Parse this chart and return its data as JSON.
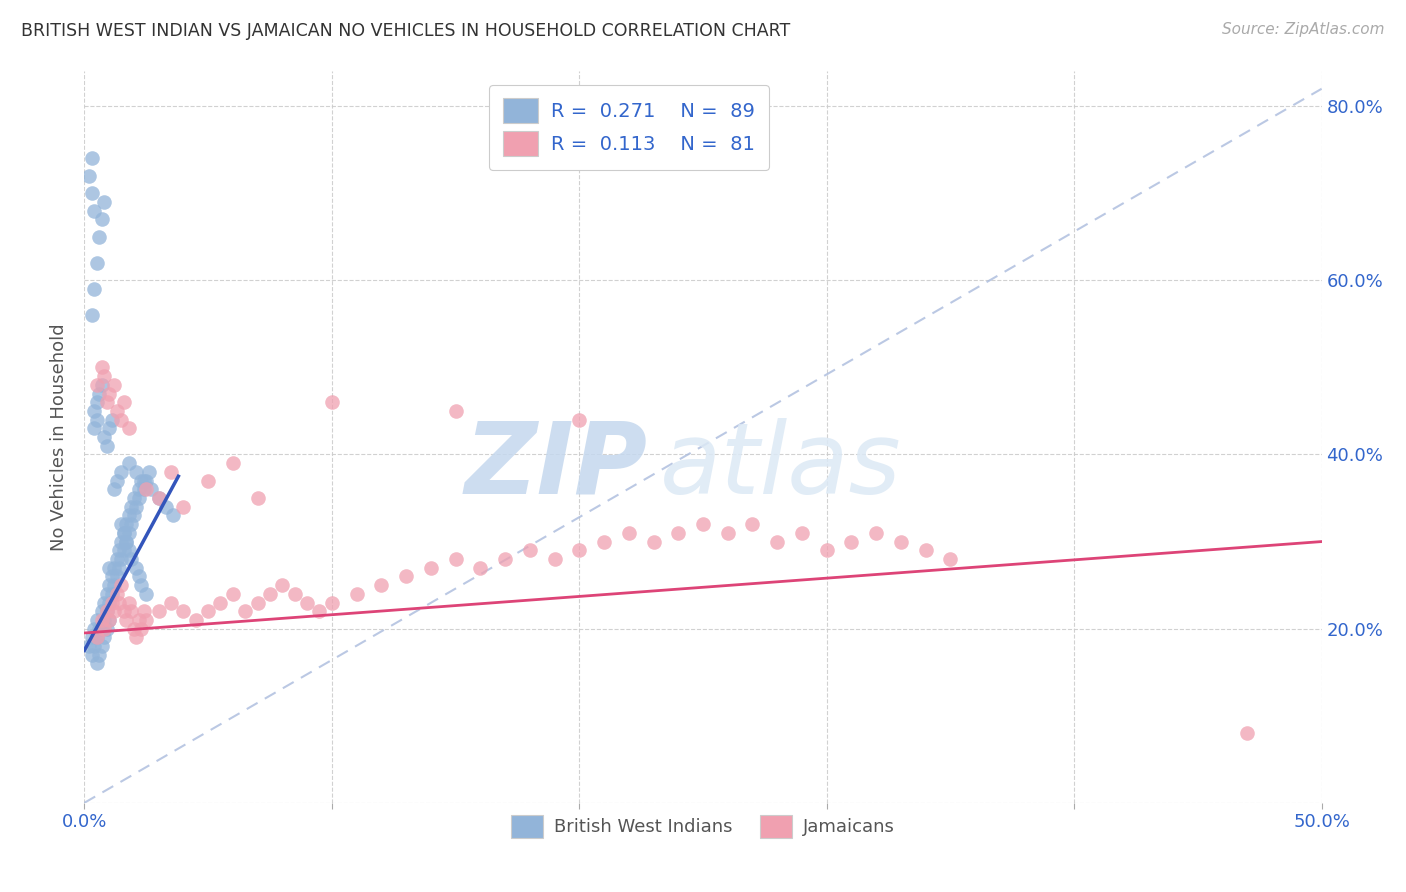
{
  "title": "BRITISH WEST INDIAN VS JAMAICAN NO VEHICLES IN HOUSEHOLD CORRELATION CHART",
  "source": "Source: ZipAtlas.com",
  "ylabel": "No Vehicles in Household",
  "xlim": [
    0.0,
    0.5
  ],
  "ylim": [
    0.0,
    0.84
  ],
  "x_ticks": [
    0.0,
    0.1,
    0.2,
    0.3,
    0.4,
    0.5
  ],
  "x_tick_labels": [
    "0.0%",
    "",
    "",
    "",
    "",
    "50.0%"
  ],
  "y_ticks": [
    0.0,
    0.2,
    0.4,
    0.6,
    0.8
  ],
  "right_y_tick_labels": [
    "",
    "20.0%",
    "40.0%",
    "60.0%",
    "80.0%"
  ],
  "color_blue": "#92b4d9",
  "color_pink": "#f0a0b0",
  "line_blue": "#3355bb",
  "line_pink": "#dd4477",
  "line_diag": "#aabbdd",
  "watermark_zip": "ZIP",
  "watermark_atlas": "atlas",
  "blue_points_x": [
    0.002,
    0.003,
    0.003,
    0.004,
    0.004,
    0.005,
    0.005,
    0.005,
    0.006,
    0.006,
    0.007,
    0.007,
    0.007,
    0.008,
    0.008,
    0.008,
    0.009,
    0.009,
    0.009,
    0.01,
    0.01,
    0.01,
    0.01,
    0.011,
    0.011,
    0.012,
    0.012,
    0.013,
    0.013,
    0.014,
    0.014,
    0.015,
    0.015,
    0.016,
    0.016,
    0.017,
    0.017,
    0.018,
    0.018,
    0.019,
    0.019,
    0.02,
    0.02,
    0.021,
    0.022,
    0.022,
    0.023,
    0.024,
    0.025,
    0.026,
    0.003,
    0.004,
    0.005,
    0.006,
    0.007,
    0.008,
    0.002,
    0.003,
    0.004,
    0.003,
    0.004,
    0.004,
    0.005,
    0.005,
    0.006,
    0.007,
    0.008,
    0.009,
    0.01,
    0.011,
    0.012,
    0.013,
    0.015,
    0.018,
    0.021,
    0.024,
    0.027,
    0.03,
    0.033,
    0.036,
    0.015,
    0.016,
    0.017,
    0.018,
    0.019,
    0.021,
    0.022,
    0.023,
    0.025
  ],
  "blue_points_y": [
    0.18,
    0.17,
    0.19,
    0.18,
    0.2,
    0.16,
    0.19,
    0.21,
    0.17,
    0.2,
    0.18,
    0.2,
    0.22,
    0.19,
    0.21,
    0.23,
    0.2,
    0.22,
    0.24,
    0.21,
    0.23,
    0.25,
    0.27,
    0.24,
    0.26,
    0.25,
    0.27,
    0.26,
    0.28,
    0.27,
    0.29,
    0.28,
    0.3,
    0.29,
    0.31,
    0.3,
    0.32,
    0.31,
    0.33,
    0.32,
    0.34,
    0.33,
    0.35,
    0.34,
    0.35,
    0.36,
    0.37,
    0.36,
    0.37,
    0.38,
    0.56,
    0.59,
    0.62,
    0.65,
    0.67,
    0.69,
    0.72,
    0.7,
    0.68,
    0.74,
    0.43,
    0.45,
    0.44,
    0.46,
    0.47,
    0.48,
    0.42,
    0.41,
    0.43,
    0.44,
    0.36,
    0.37,
    0.38,
    0.39,
    0.38,
    0.37,
    0.36,
    0.35,
    0.34,
    0.33,
    0.32,
    0.31,
    0.3,
    0.29,
    0.28,
    0.27,
    0.26,
    0.25,
    0.24
  ],
  "pink_points_x": [
    0.005,
    0.007,
    0.008,
    0.009,
    0.01,
    0.011,
    0.012,
    0.013,
    0.014,
    0.015,
    0.016,
    0.017,
    0.018,
    0.019,
    0.02,
    0.021,
    0.022,
    0.023,
    0.024,
    0.025,
    0.03,
    0.035,
    0.04,
    0.045,
    0.05,
    0.055,
    0.06,
    0.065,
    0.07,
    0.075,
    0.08,
    0.085,
    0.09,
    0.095,
    0.1,
    0.11,
    0.12,
    0.13,
    0.14,
    0.15,
    0.16,
    0.17,
    0.18,
    0.19,
    0.2,
    0.21,
    0.22,
    0.23,
    0.24,
    0.25,
    0.26,
    0.27,
    0.28,
    0.29,
    0.3,
    0.31,
    0.32,
    0.33,
    0.34,
    0.35,
    0.005,
    0.007,
    0.008,
    0.009,
    0.01,
    0.012,
    0.013,
    0.015,
    0.016,
    0.018,
    0.025,
    0.03,
    0.035,
    0.04,
    0.05,
    0.06,
    0.07,
    0.1,
    0.15,
    0.2,
    0.47
  ],
  "pink_points_y": [
    0.19,
    0.21,
    0.2,
    0.22,
    0.21,
    0.23,
    0.22,
    0.24,
    0.23,
    0.25,
    0.22,
    0.21,
    0.23,
    0.22,
    0.2,
    0.19,
    0.21,
    0.2,
    0.22,
    0.21,
    0.22,
    0.23,
    0.22,
    0.21,
    0.22,
    0.23,
    0.24,
    0.22,
    0.23,
    0.24,
    0.25,
    0.24,
    0.23,
    0.22,
    0.23,
    0.24,
    0.25,
    0.26,
    0.27,
    0.28,
    0.27,
    0.28,
    0.29,
    0.28,
    0.29,
    0.3,
    0.31,
    0.3,
    0.31,
    0.32,
    0.31,
    0.32,
    0.3,
    0.31,
    0.29,
    0.3,
    0.31,
    0.3,
    0.29,
    0.28,
    0.48,
    0.5,
    0.49,
    0.46,
    0.47,
    0.48,
    0.45,
    0.44,
    0.46,
    0.43,
    0.36,
    0.35,
    0.38,
    0.34,
    0.37,
    0.39,
    0.35,
    0.46,
    0.45,
    0.44,
    0.08
  ]
}
